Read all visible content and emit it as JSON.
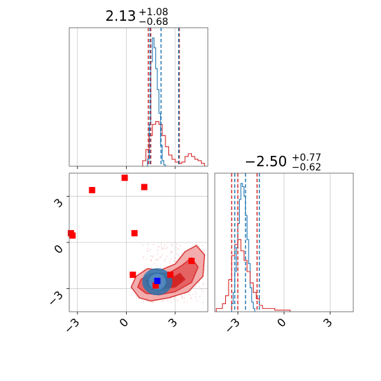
{
  "colors": {
    "blue": "#1f77b4",
    "red": "#d62728",
    "marker_red": "#ff0000",
    "marker_blue": "#0000ff",
    "grid": "#c8c8c8"
  },
  "titles": {
    "p1": {
      "value": "2.13",
      "plus": "+1.08",
      "minus": "−0.68"
    },
    "p2": {
      "value": "−2.50",
      "plus": "+0.77",
      "minus": "−0.62"
    }
  },
  "ticks": {
    "p1": [
      {
        "value": -3,
        "label": "−3"
      },
      {
        "value": 0,
        "label": "0"
      },
      {
        "value": 3,
        "label": "3"
      }
    ],
    "p2": [
      {
        "value": -3,
        "label": "−3"
      },
      {
        "value": 0,
        "label": "0"
      },
      {
        "value": 3,
        "label": "3"
      }
    ]
  },
  "chart_data": [
    {
      "type": "histogram",
      "panel": "marginal-p1",
      "xlim": [
        -3.5,
        5.0
      ],
      "grid": true,
      "quantiles_blue": [
        1.45,
        2.13,
        3.21
      ],
      "quantiles_red": [
        1.35,
        1.5,
        3.25
      ],
      "series": [
        {
          "color": "blue",
          "edges": [
            1.3,
            1.4,
            1.5,
            1.6,
            1.7,
            1.8,
            1.9,
            2.0,
            2.1,
            2.2,
            2.3,
            2.4
          ],
          "counts": [
            0.05,
            0.3,
            0.75,
            0.92,
            0.85,
            0.7,
            0.55,
            0.38,
            0.15,
            0.04,
            0.01
          ]
        },
        {
          "color": "red",
          "edges": [
            1.0,
            1.2,
            1.4,
            1.6,
            1.8,
            2.0,
            2.2,
            2.4,
            2.6,
            2.8,
            3.0,
            3.2,
            3.4,
            3.6,
            3.8,
            4.0,
            4.2,
            4.4,
            4.6,
            4.8
          ],
          "counts": [
            0.04,
            0.12,
            0.22,
            0.3,
            0.32,
            0.3,
            0.22,
            0.14,
            0.08,
            0.05,
            0.03,
            0.02,
            0.03,
            0.07,
            0.09,
            0.07,
            0.05,
            0.04,
            0.02
          ]
        }
      ]
    },
    {
      "type": "histogram",
      "panel": "marginal-p2",
      "xlim": [
        -4.5,
        4.5
      ],
      "grid": true,
      "quantiles_blue": [
        -3.2,
        -2.5,
        -1.6
      ],
      "quantiles_red": [
        -3.4,
        -3.0,
        -1.75
      ],
      "series": [
        {
          "color": "blue",
          "edges": [
            -3.4,
            -3.3,
            -3.2,
            -3.1,
            -3.0,
            -2.9,
            -2.8,
            -2.7,
            -2.6,
            -2.5,
            -2.4,
            -2.3,
            -2.2,
            -2.1,
            -2.0,
            -1.9
          ],
          "counts": [
            0.05,
            0.12,
            0.25,
            0.4,
            0.55,
            0.7,
            0.8,
            0.78,
            0.72,
            0.6,
            0.45,
            0.3,
            0.15,
            0.06,
            0.02
          ]
        },
        {
          "color": "red",
          "edges": [
            -4.4,
            -4.0,
            -3.8,
            -3.6,
            -3.4,
            -3.2,
            -3.0,
            -2.8,
            -2.6,
            -2.4,
            -2.2,
            -2.0,
            -1.8,
            -1.6,
            -1.4,
            -1.0,
            -0.6,
            -0.2,
            0.4
          ],
          "counts": [
            0.02,
            0.05,
            0.1,
            0.2,
            0.35,
            0.42,
            0.45,
            0.38,
            0.32,
            0.25,
            0.18,
            0.12,
            0.08,
            0.04,
            0.02,
            0.02,
            0.01,
            0.01
          ]
        }
      ]
    },
    {
      "type": "scatter",
      "panel": "joint",
      "xlim": [
        -3.5,
        5.0
      ],
      "ylim": [
        -4.5,
        4.5
      ],
      "grid": true,
      "red_points": [
        {
          "x": -3.4,
          "y": 0.6
        },
        {
          "x": -3.3,
          "y": 0.45
        },
        {
          "x": -2.1,
          "y": 3.4
        },
        {
          "x": -0.1,
          "y": 4.2
        },
        {
          "x": 1.1,
          "y": 3.6
        },
        {
          "x": 0.5,
          "y": 0.6
        },
        {
          "x": 0.4,
          "y": -2.1
        },
        {
          "x": 2.7,
          "y": -2.1
        },
        {
          "x": 4.0,
          "y": -1.2
        },
        {
          "x": 1.8,
          "y": -2.8
        }
      ],
      "blue_point": {
        "x": 1.9,
        "y": -2.5
      },
      "contours": [
        {
          "level": "outer",
          "color": "#f2a5a5",
          "points": [
            [
              0.6,
              -2.2
            ],
            [
              1.3,
              -1.7
            ],
            [
              2.1,
              -1.8
            ],
            [
              3.0,
              -1.4
            ],
            [
              3.6,
              -0.6
            ],
            [
              4.3,
              -0.2
            ],
            [
              4.8,
              -0.8
            ],
            [
              4.7,
              -2.2
            ],
            [
              3.8,
              -3.2
            ],
            [
              2.6,
              -3.6
            ],
            [
              1.5,
              -3.8
            ],
            [
              0.8,
              -3.6
            ],
            [
              0.3,
              -2.9
            ]
          ]
        },
        {
          "level": "middle",
          "color": "#e45b5b",
          "points": [
            [
              0.9,
              -2.4
            ],
            [
              1.6,
              -2.0
            ],
            [
              2.6,
              -2.0
            ],
            [
              3.4,
              -1.5
            ],
            [
              4.0,
              -1.0
            ],
            [
              4.4,
              -1.6
            ],
            [
              4.0,
              -2.6
            ],
            [
              3.0,
              -3.2
            ],
            [
              2.0,
              -3.4
            ],
            [
              1.2,
              -3.3
            ],
            [
              0.7,
              -2.9
            ]
          ]
        },
        {
          "level": "inner",
          "color": "#d21e1e",
          "points": [
            [
              1.2,
              -2.5
            ],
            [
              1.9,
              -2.2
            ],
            [
              2.8,
              -2.3
            ],
            [
              3.3,
              -2.0
            ],
            [
              3.6,
              -2.4
            ],
            [
              3.0,
              -2.9
            ],
            [
              2.1,
              -3.0
            ],
            [
              1.4,
              -2.9
            ]
          ]
        }
      ],
      "blue_contours": [
        {
          "color": "#1f77b4",
          "cx": 1.9,
          "cy": -2.55,
          "rx": 0.9,
          "ry": 0.85
        },
        {
          "color": "#5a8fc4",
          "cx": 1.9,
          "cy": -2.55,
          "rx": 0.55,
          "ry": 0.55
        }
      ]
    }
  ]
}
